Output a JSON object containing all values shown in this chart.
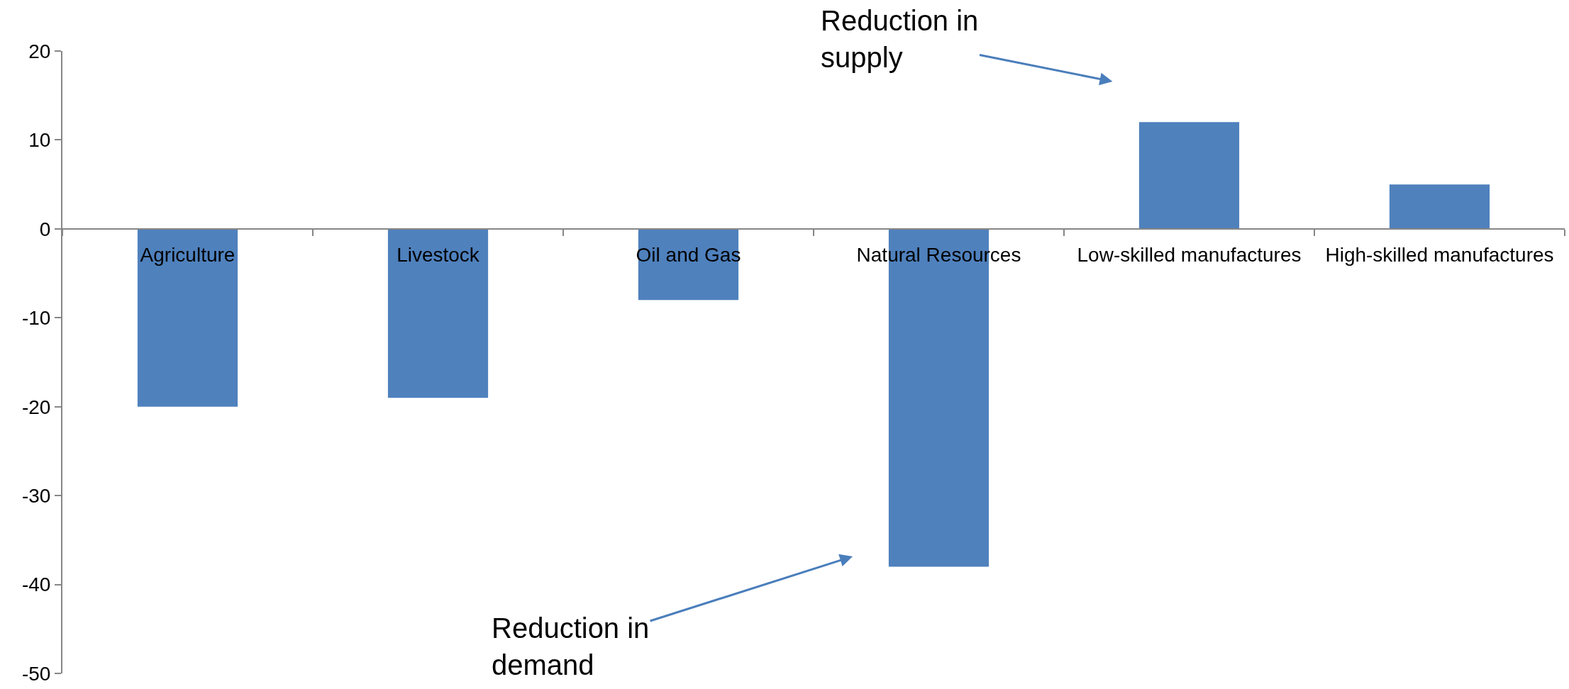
{
  "chart_data": {
    "type": "bar",
    "categories": [
      "Agriculture",
      "Livestock",
      "Oil and Gas",
      "Natural Resources",
      "Low-skilled manufactures",
      "High-skilled manufactures"
    ],
    "values": [
      -20,
      -19,
      -8,
      -38,
      12,
      5
    ],
    "color": "#4f81bd",
    "ylim": [
      -50,
      20
    ],
    "yticks": [
      -50,
      -40,
      -30,
      -20,
      -10,
      0,
      10,
      20
    ],
    "annotations": [
      "Reduction in supply",
      "Reduction in demand"
    ]
  }
}
